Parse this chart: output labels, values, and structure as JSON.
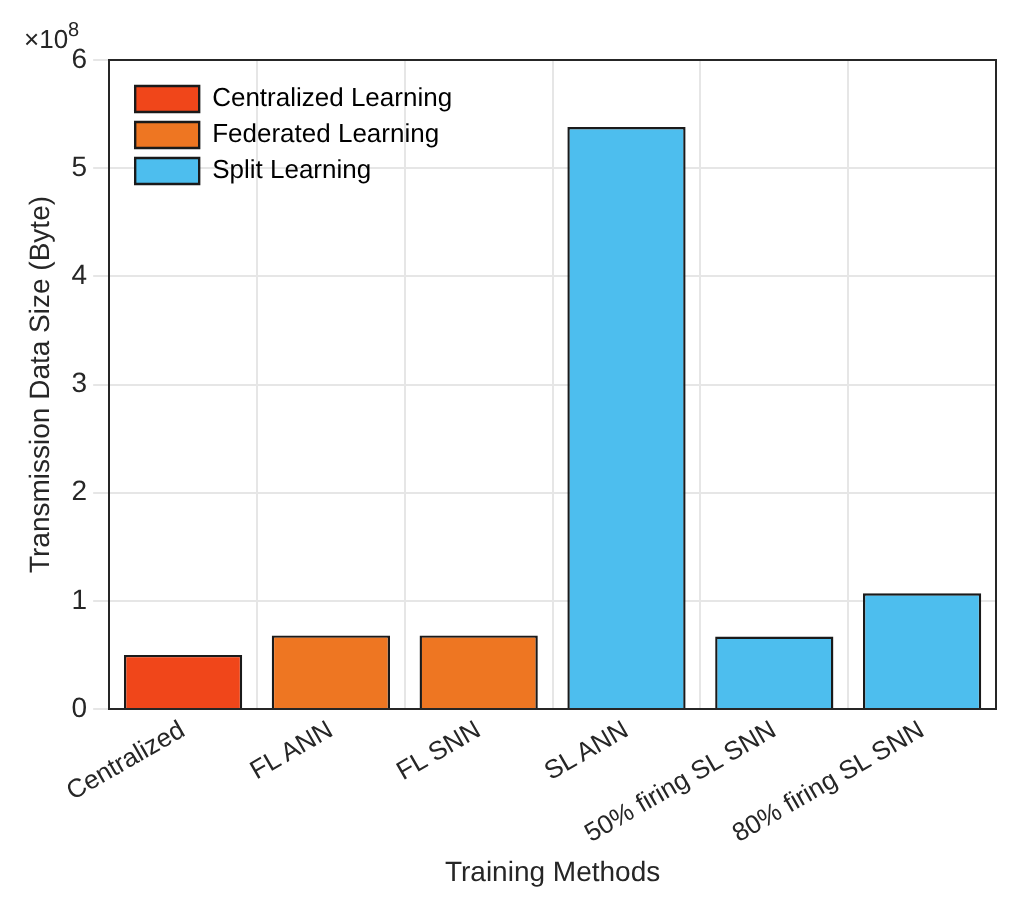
{
  "chart_data": {
    "type": "bar",
    "xlabel": "Training Methods",
    "ylabel": "Transmission Data Size (Byte)",
    "annotations": [
      "×10$^{8}$"
    ],
    "categories": [
      "Centralized",
      "FL ANN",
      "FL SNN",
      "SL ANN",
      "50% firing SL SNN",
      "80% firing SL SNN"
    ],
    "series": [
      {
        "name": "Centralized Learning",
        "color": "#f0461a",
        "values": [
          0.5,
          null,
          null,
          null,
          null,
          null
        ]
      },
      {
        "name": "Federated Learning",
        "color": "#ee7622",
        "values": [
          null,
          0.68,
          0.68,
          null,
          null,
          null
        ]
      },
      {
        "name": "Split Learning",
        "color": "#4dbeee",
        "values": [
          null,
          null,
          null,
          5.38,
          0.67,
          1.07
        ]
      }
    ],
    "ylim": [
      0,
      6
    ],
    "yticks": [
      0,
      1,
      2,
      3,
      4,
      5,
      6
    ],
    "grid": true,
    "legend": "top left"
  }
}
